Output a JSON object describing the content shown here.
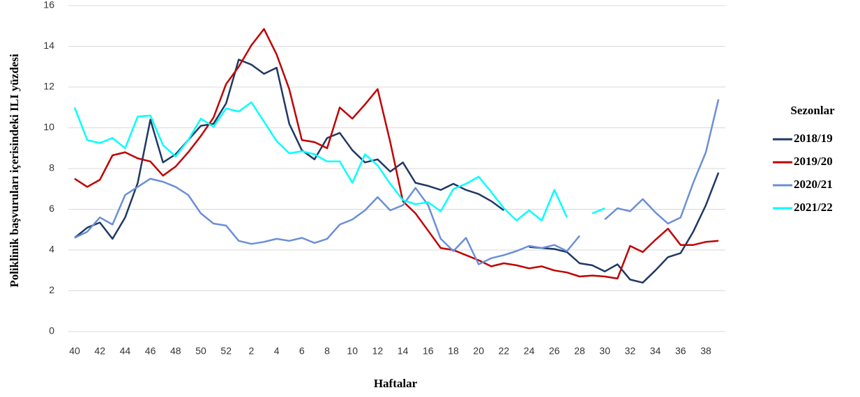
{
  "chart_data": {
    "type": "line",
    "x_label": "Haftalar",
    "y_label": "Poliklinik başvuruları içerisindeki ILI yüzdesi",
    "legend_title": "Sezonlar",
    "legend": "right",
    "grid": true,
    "ylim": [
      0,
      16
    ],
    "yticks": [
      0,
      2,
      4,
      6,
      8,
      10,
      12,
      14,
      16
    ],
    "categories": [
      "40",
      null,
      "42",
      null,
      "44",
      null,
      "46",
      null,
      "48",
      null,
      "50",
      null,
      "52",
      null,
      "2",
      null,
      "4",
      null,
      "6",
      null,
      "8",
      null,
      "10",
      null,
      "12",
      null,
      "14",
      null,
      "16",
      null,
      "18",
      null,
      "20",
      null,
      "22",
      null,
      "24",
      null,
      "26",
      null,
      "28",
      null,
      "30",
      null,
      "32",
      null,
      "34",
      null,
      "36",
      null,
      "38",
      null
    ],
    "series": [
      {
        "name": "2018/19",
        "color": "#1f3864",
        "values": [
          4.6,
          5.1,
          5.35,
          4.55,
          5.6,
          7.3,
          10.4,
          8.3,
          8.7,
          9.4,
          10.1,
          10.2,
          11.2,
          13.35,
          13.1,
          12.65,
          12.95,
          10.2,
          8.9,
          8.45,
          9.5,
          9.75,
          8.9,
          8.3,
          8.45,
          7.85,
          8.3,
          7.3,
          7.15,
          6.95,
          7.25,
          6.95,
          6.75,
          6.4,
          5.95,
          null,
          4.15,
          4.1,
          4.05,
          3.9,
          3.35,
          3.25,
          2.95,
          3.3,
          2.55,
          2.4,
          3.0,
          3.65,
          3.85,
          4.9,
          6.2,
          7.8
        ]
      },
      {
        "name": "2019/20",
        "color": "#c00000",
        "values": [
          7.5,
          7.1,
          7.45,
          8.65,
          8.8,
          8.5,
          8.35,
          7.65,
          8.1,
          8.8,
          9.6,
          10.5,
          12.15,
          13.0,
          14.05,
          14.85,
          13.6,
          11.9,
          9.4,
          9.3,
          9.0,
          11.0,
          10.45,
          11.15,
          11.9,
          9.3,
          6.4,
          5.8,
          4.95,
          4.1,
          4.0,
          3.75,
          3.5,
          3.2,
          3.35,
          3.25,
          3.1,
          3.2,
          3.0,
          2.9,
          2.7,
          2.75,
          2.7,
          2.6,
          4.2,
          3.9,
          4.5,
          5.05,
          4.25,
          4.25,
          4.4,
          4.45
        ]
      },
      {
        "name": "2020/21",
        "color": "#6a8fd6",
        "values": [
          4.6,
          4.9,
          5.6,
          5.25,
          6.7,
          7.1,
          7.5,
          7.35,
          7.1,
          6.7,
          5.8,
          5.3,
          5.2,
          4.45,
          4.3,
          4.4,
          4.55,
          4.45,
          4.6,
          4.35,
          4.55,
          5.25,
          5.5,
          5.95,
          6.6,
          5.95,
          6.2,
          7.05,
          6.2,
          4.55,
          3.95,
          4.6,
          3.3,
          3.6,
          3.75,
          3.95,
          4.2,
          4.1,
          4.25,
          3.95,
          4.7,
          null,
          5.5,
          6.05,
          5.9,
          6.5,
          5.85,
          5.3,
          5.6,
          7.3,
          8.8,
          11.4
        ]
      },
      {
        "name": "2021/22",
        "color": "#00ffff",
        "values": [
          11.0,
          9.4,
          9.25,
          9.5,
          9.0,
          10.55,
          10.6,
          9.15,
          8.6,
          9.4,
          10.45,
          10.05,
          10.95,
          10.8,
          11.25,
          10.3,
          9.35,
          8.75,
          8.85,
          8.7,
          8.35,
          8.35,
          7.3,
          8.7,
          8.15,
          7.25,
          6.45,
          6.25,
          6.35,
          5.9,
          7.0,
          7.25,
          7.6,
          6.85,
          6.05,
          5.45,
          5.95,
          5.45,
          6.95,
          5.6,
          null,
          5.8,
          6.05,
          null,
          null,
          null,
          null,
          null,
          null,
          null,
          null,
          null
        ]
      }
    ]
  }
}
